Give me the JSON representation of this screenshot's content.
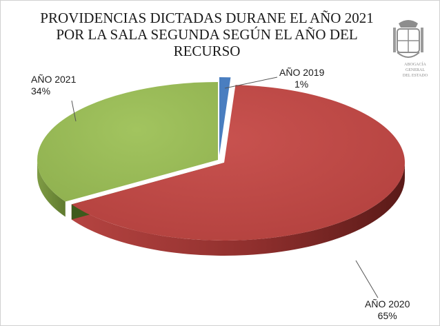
{
  "chart_data": {
    "type": "pie",
    "title": [
      "PROVIDENCIAS DICTADAS DURANE EL AÑO 2021",
      "POR LA SALA SEGUNDA SEGÚN EL AÑO DEL",
      "RECURSO"
    ],
    "categories": [
      "AÑO 2019",
      "AÑO 2020",
      "AÑO 2021"
    ],
    "values": [
      1,
      65,
      34
    ],
    "value_labels": [
      "1%",
      "65%",
      "34%"
    ],
    "colors": [
      "#4a7ec0",
      "#c0504d",
      "#9bbb59"
    ],
    "style": "3d-exploded"
  },
  "emblem": {
    "icon": "coat-of-arms-icon",
    "caption": [
      "ABOGACÍA GENERAL",
      "DEL ESTADO"
    ]
  }
}
